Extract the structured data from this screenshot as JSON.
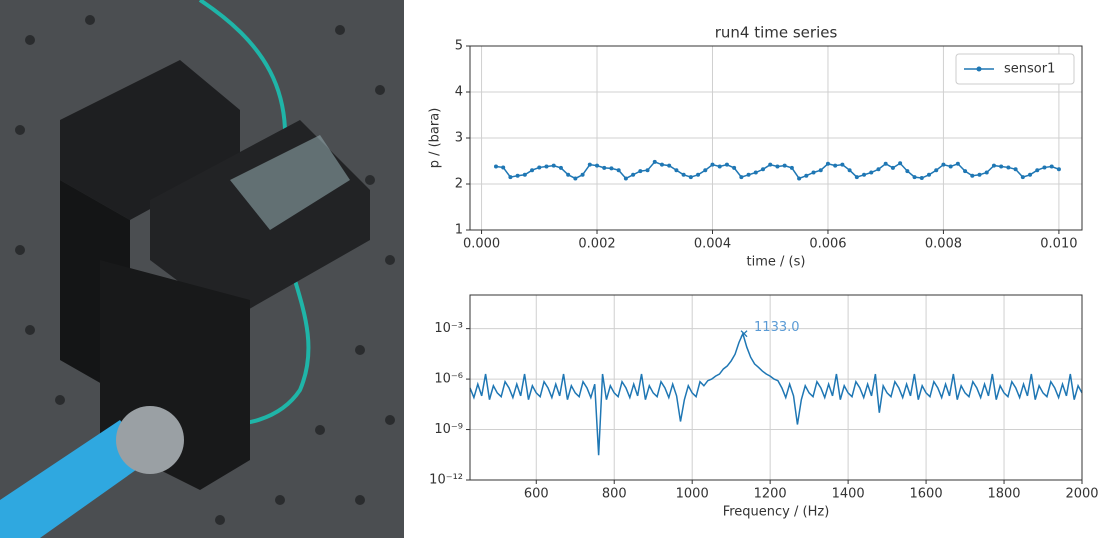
{
  "chart_data": [
    {
      "type": "line",
      "title": "run4 time series",
      "xlabel": "time / (s)",
      "ylabel": "p / (bara)",
      "xlim": [
        -0.0002,
        0.0104
      ],
      "ylim": [
        1,
        5
      ],
      "xticks": [
        {
          "value": 0,
          "label": "0.000"
        },
        {
          "value": 0.002,
          "label": "0.002"
        },
        {
          "value": 0.004,
          "label": "0.004"
        },
        {
          "value": 0.006,
          "label": "0.006"
        },
        {
          "value": 0.008,
          "label": "0.008"
        },
        {
          "value": 0.01,
          "label": "0.010"
        }
      ],
      "yticks": [
        1,
        2,
        3,
        4,
        5
      ],
      "grid": true,
      "legend": "upper right",
      "markers": true,
      "series": [
        {
          "name": "sensor1",
          "color": "#1f77b4",
          "x": [
            0.00025,
            0.000375,
            0.0005,
            0.000625,
            0.00075,
            0.000875,
            0.001,
            0.001125,
            0.00125,
            0.001375,
            0.0015,
            0.001625,
            0.00175,
            0.001875,
            0.002,
            0.002125,
            0.00225,
            0.002375,
            0.0025,
            0.002625,
            0.00275,
            0.002875,
            0.003,
            0.003125,
            0.00325,
            0.003375,
            0.0035,
            0.003625,
            0.00375,
            0.003875,
            0.004,
            0.004125,
            0.00425,
            0.004375,
            0.0045,
            0.004625,
            0.00475,
            0.004875,
            0.005,
            0.005125,
            0.00525,
            0.005375,
            0.0055,
            0.005625,
            0.00575,
            0.005875,
            0.006,
            0.006125,
            0.00625,
            0.006375,
            0.0065,
            0.006625,
            0.00675,
            0.006875,
            0.007,
            0.007125,
            0.00725,
            0.007375,
            0.0075,
            0.007625,
            0.00775,
            0.007875,
            0.008,
            0.008125,
            0.00825,
            0.008375,
            0.0085,
            0.008625,
            0.00875,
            0.008875,
            0.009,
            0.009125,
            0.00925,
            0.009375,
            0.0095,
            0.009625,
            0.00975,
            0.009875,
            0.01
          ],
          "values": [
            2.38,
            2.36,
            2.15,
            2.18,
            2.2,
            2.3,
            2.36,
            2.38,
            2.4,
            2.35,
            2.2,
            2.12,
            2.2,
            2.42,
            2.4,
            2.35,
            2.34,
            2.3,
            2.12,
            2.2,
            2.28,
            2.3,
            2.48,
            2.42,
            2.4,
            2.3,
            2.2,
            2.15,
            2.2,
            2.3,
            2.42,
            2.38,
            2.42,
            2.35,
            2.15,
            2.2,
            2.25,
            2.32,
            2.42,
            2.38,
            2.4,
            2.35,
            2.12,
            2.18,
            2.25,
            2.3,
            2.44,
            2.4,
            2.42,
            2.3,
            2.15,
            2.2,
            2.25,
            2.32,
            2.44,
            2.35,
            2.45,
            2.28,
            2.15,
            2.13,
            2.2,
            2.3,
            2.42,
            2.38,
            2.44,
            2.28,
            2.18,
            2.2,
            2.25,
            2.4,
            2.38,
            2.36,
            2.32,
            2.15,
            2.2,
            2.3,
            2.36,
            2.38,
            2.32
          ]
        }
      ]
    },
    {
      "type": "line",
      "xlabel": "Frequency / (Hz)",
      "log_y": true,
      "xlim": [
        430,
        2000
      ],
      "ylim": [
        1e-12,
        0.1
      ],
      "xticks": [
        600,
        800,
        1000,
        1200,
        1400,
        1600,
        1800,
        2000
      ],
      "yticks": [
        {
          "value": 0.001,
          "label": "10⁻³"
        },
        {
          "value": 1e-06,
          "label": "10⁻⁶"
        },
        {
          "value": 1e-09,
          "label": "10⁻⁹"
        },
        {
          "value": 1e-12,
          "label": "10⁻¹²"
        }
      ],
      "grid": true,
      "markers": false,
      "annotations": [
        {
          "text": "1133.0",
          "x": 1133,
          "y": 0.0005
        }
      ],
      "series": [
        {
          "color": "#1f77b4",
          "x": [
            430,
            440,
            450,
            460,
            470,
            480,
            490,
            500,
            510,
            520,
            530,
            540,
            550,
            560,
            570,
            580,
            590,
            600,
            610,
            620,
            630,
            640,
            650,
            660,
            670,
            680,
            690,
            700,
            710,
            720,
            730,
            740,
            750,
            760,
            770,
            780,
            790,
            800,
            810,
            820,
            830,
            840,
            850,
            860,
            870,
            880,
            890,
            900,
            910,
            920,
            930,
            940,
            950,
            960,
            970,
            980,
            990,
            1000,
            1010,
            1020,
            1030,
            1040,
            1050,
            1060,
            1070,
            1080,
            1090,
            1100,
            1110,
            1120,
            1130,
            1140,
            1150,
            1160,
            1170,
            1180,
            1190,
            1200,
            1210,
            1220,
            1230,
            1240,
            1250,
            1260,
            1270,
            1280,
            1290,
            1300,
            1310,
            1320,
            1330,
            1340,
            1350,
            1360,
            1370,
            1380,
            1390,
            1400,
            1410,
            1420,
            1430,
            1440,
            1450,
            1460,
            1470,
            1480,
            1490,
            1500,
            1510,
            1520,
            1530,
            1540,
            1550,
            1560,
            1570,
            1580,
            1590,
            1600,
            1610,
            1620,
            1630,
            1640,
            1650,
            1660,
            1670,
            1680,
            1690,
            1700,
            1710,
            1720,
            1730,
            1740,
            1750,
            1760,
            1770,
            1780,
            1790,
            1800,
            1810,
            1820,
            1830,
            1840,
            1850,
            1860,
            1870,
            1880,
            1890,
            1900,
            1910,
            1920,
            1930,
            1940,
            1950,
            1960,
            1970,
            1980,
            1990,
            2000
          ],
          "values": [
            3e-07,
            8e-08,
            5e-07,
            1e-07,
            2e-06,
            6e-08,
            4e-07,
            1.5e-07,
            9e-08,
            7e-07,
            3e-07,
            8e-08,
            5e-07,
            1e-07,
            2e-06,
            6e-08,
            4e-07,
            1.5e-07,
            9e-08,
            7e-07,
            3e-07,
            8e-08,
            5e-07,
            1e-07,
            2e-06,
            6e-08,
            4e-07,
            1.5e-07,
            9e-08,
            7e-07,
            3e-07,
            8e-08,
            5e-07,
            3e-11,
            2e-06,
            6e-08,
            4e-07,
            1.5e-07,
            9e-08,
            7e-07,
            3e-07,
            8e-08,
            5e-07,
            1e-07,
            2e-06,
            6e-08,
            4e-07,
            1.5e-07,
            9e-08,
            7e-07,
            3e-07,
            8e-08,
            5e-07,
            1e-07,
            3e-09,
            6e-08,
            4e-07,
            1.5e-07,
            9e-08,
            7e-07,
            4e-07,
            8e-07,
            1e-06,
            1.5e-06,
            2e-06,
            4e-06,
            6e-06,
            1.2e-05,
            3e-05,
            0.00015,
            0.0005,
            8e-05,
            2e-05,
            8e-06,
            5e-06,
            3e-06,
            2e-06,
            1.5e-06,
            1e-06,
            8e-07,
            3e-07,
            8e-08,
            5e-07,
            1e-07,
            2e-09,
            6e-08,
            4e-07,
            1.5e-07,
            9e-08,
            7e-07,
            3e-07,
            8e-08,
            5e-07,
            1e-07,
            2e-06,
            6e-08,
            4e-07,
            1.5e-07,
            9e-08,
            7e-07,
            3e-07,
            8e-08,
            5e-07,
            1e-07,
            2e-06,
            1e-08,
            4e-07,
            1.5e-07,
            9e-08,
            7e-07,
            3e-07,
            8e-08,
            5e-07,
            1e-07,
            2e-06,
            6e-08,
            4e-07,
            1.5e-07,
            9e-08,
            7e-07,
            3e-07,
            8e-08,
            5e-07,
            1e-07,
            2e-06,
            6e-08,
            4e-07,
            1.5e-07,
            9e-08,
            7e-07,
            3e-07,
            8e-08,
            5e-07,
            1e-07,
            2e-06,
            6e-08,
            4e-07,
            1.5e-07,
            9e-08,
            7e-07,
            3e-07,
            8e-08,
            5e-07,
            1e-07,
            2e-06,
            6e-08,
            4e-07,
            1.5e-07,
            9e-08,
            7e-07,
            3e-07,
            8e-08,
            5e-07,
            1e-07,
            2e-06,
            6e-08,
            4e-07,
            1.5e-07
          ]
        }
      ]
    }
  ]
}
